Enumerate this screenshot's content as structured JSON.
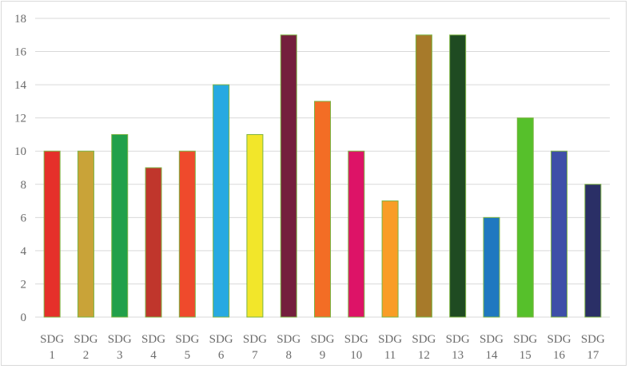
{
  "chart_data": {
    "type": "bar",
    "title": "",
    "xlabel": "",
    "ylabel": "",
    "ylim": [
      0,
      18
    ],
    "yticks": [
      0,
      2,
      4,
      6,
      8,
      10,
      12,
      14,
      16,
      18
    ],
    "grid": true,
    "legend": "none",
    "categories": [
      {
        "line1": "SDG",
        "line2": "1"
      },
      {
        "line1": "SDG",
        "line2": "2"
      },
      {
        "line1": "SDG",
        "line2": "3"
      },
      {
        "line1": "SDG",
        "line2": "4"
      },
      {
        "line1": "SDG",
        "line2": "5"
      },
      {
        "line1": "SDG",
        "line2": "6"
      },
      {
        "line1": "SDG",
        "line2": "7"
      },
      {
        "line1": "SDG",
        "line2": "8"
      },
      {
        "line1": "SDG",
        "line2": "9"
      },
      {
        "line1": "SDG",
        "line2": "10"
      },
      {
        "line1": "SDG",
        "line2": "11"
      },
      {
        "line1": "SDG",
        "line2": "12"
      },
      {
        "line1": "SDG",
        "line2": "13"
      },
      {
        "line1": "SDG",
        "line2": "14"
      },
      {
        "line1": "SDG",
        "line2": "15"
      },
      {
        "line1": "SDG",
        "line2": "16"
      },
      {
        "line1": "SDG",
        "line2": "17"
      }
    ],
    "values": [
      10,
      10,
      11,
      9,
      10,
      14,
      11,
      17,
      13,
      10,
      7,
      17,
      17,
      6,
      12,
      10,
      8
    ],
    "colors": [
      "#e5302a",
      "#c9a338",
      "#22a04a",
      "#c0362c",
      "#ef4a2c",
      "#27a9e1",
      "#f2e62a",
      "#741f3d",
      "#f36d25",
      "#dd1367",
      "#f99d26",
      "#a77a2a",
      "#1f4b22",
      "#1f78c0",
      "#56c02b",
      "#3e4fa8",
      "#2a2f66"
    ],
    "bar_outline_color": "#7cb342",
    "gridline_color": "#d9d9d9",
    "tick_color": "#6b6b6b"
  }
}
